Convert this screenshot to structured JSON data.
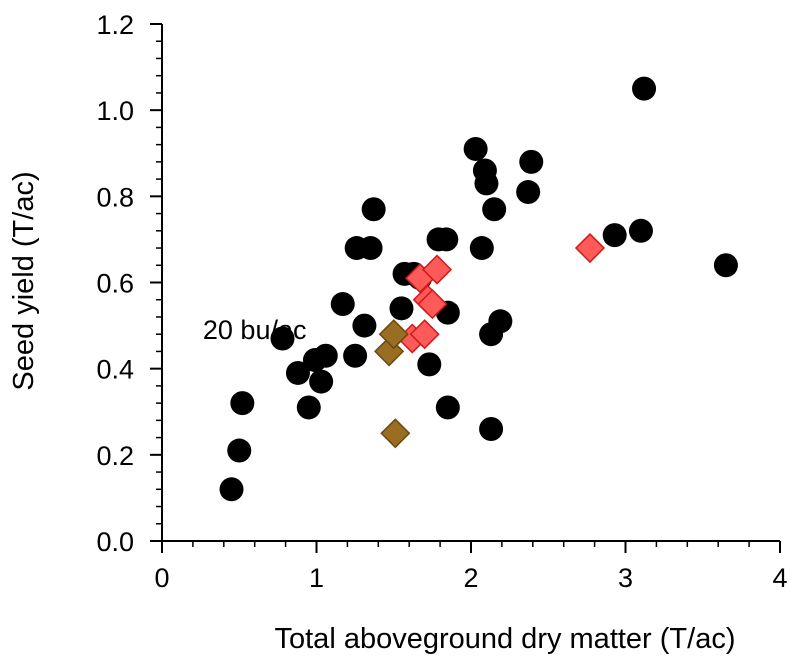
{
  "chart_data": {
    "type": "scatter",
    "xlabel": "Total aboveground dry matter (T/ac)",
    "ylabel": "Seed yield (T/ac)",
    "xlim": [
      0,
      4
    ],
    "ylim": [
      0,
      1.2
    ],
    "x_ticks": [
      "0",
      "1",
      "2",
      "3",
      "4"
    ],
    "y_ticks": [
      "0.0",
      "0.2",
      "0.4",
      "0.6",
      "0.8",
      "1.0",
      "1.2"
    ],
    "grid": false,
    "annotations": [
      {
        "text": "20 bu/ac",
        "x": 0.6,
        "y": 0.49
      }
    ],
    "series": [
      {
        "marker": "circle",
        "color": "#000000",
        "points": [
          [
            0.45,
            0.12
          ],
          [
            0.5,
            0.21
          ],
          [
            0.52,
            0.32
          ],
          [
            0.78,
            0.47
          ],
          [
            0.88,
            0.39
          ],
          [
            0.95,
            0.31
          ],
          [
            0.99,
            0.42
          ],
          [
            1.03,
            0.37
          ],
          [
            1.06,
            0.43
          ],
          [
            1.17,
            0.55
          ],
          [
            1.25,
            0.43
          ],
          [
            1.26,
            0.68
          ],
          [
            1.31,
            0.5
          ],
          [
            1.35,
            0.68
          ],
          [
            1.37,
            0.77
          ],
          [
            1.55,
            0.54
          ],
          [
            1.57,
            0.62
          ],
          [
            1.63,
            0.62
          ],
          [
            1.67,
            0.61
          ],
          [
            1.73,
            0.41
          ],
          [
            1.79,
            0.7
          ],
          [
            1.84,
            0.7
          ],
          [
            1.85,
            0.53
          ],
          [
            1.85,
            0.31
          ],
          [
            2.03,
            0.91
          ],
          [
            2.07,
            0.68
          ],
          [
            2.09,
            0.86
          ],
          [
            2.1,
            0.83
          ],
          [
            2.13,
            0.48
          ],
          [
            2.13,
            0.26
          ],
          [
            2.15,
            0.77
          ],
          [
            2.19,
            0.51
          ],
          [
            2.37,
            0.81
          ],
          [
            2.39,
            0.88
          ],
          [
            2.93,
            0.71
          ],
          [
            3.1,
            0.72
          ],
          [
            3.12,
            1.05
          ],
          [
            3.65,
            0.64
          ]
        ]
      },
      {
        "marker": "diamond",
        "color": "#ff5a5a",
        "points": [
          [
            1.62,
            0.47
          ],
          [
            1.67,
            0.61
          ],
          [
            1.7,
            0.48
          ],
          [
            1.72,
            0.56
          ],
          [
            1.75,
            0.55
          ],
          [
            1.78,
            0.63
          ],
          [
            2.77,
            0.68
          ]
        ]
      },
      {
        "marker": "diamond",
        "color": "#9a6e22",
        "points": [
          [
            1.47,
            0.44
          ],
          [
            1.5,
            0.48
          ],
          [
            1.51,
            0.25
          ]
        ]
      }
    ]
  }
}
